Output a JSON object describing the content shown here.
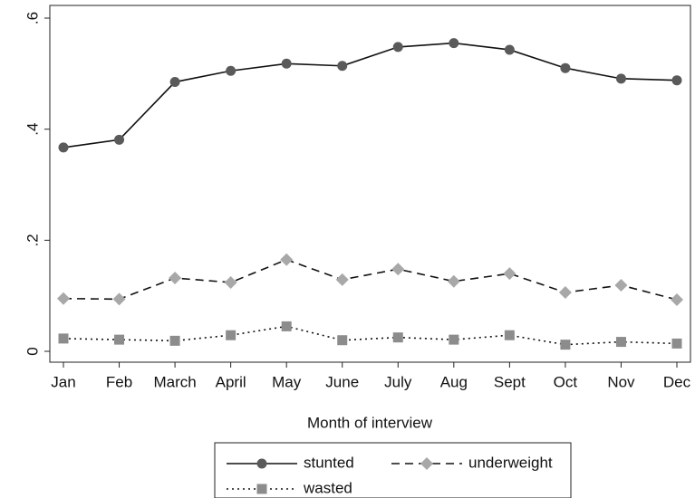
{
  "chart_data": {
    "type": "line",
    "x_label": "Month of interview",
    "categories": [
      "Jan",
      "Feb",
      "March",
      "April",
      "May",
      "June",
      "July",
      "Aug",
      "Sept",
      "Oct",
      "Nov",
      "Dec"
    ],
    "series": [
      {
        "name": "stunted",
        "color": "#5a5a5a",
        "marker": "circle",
        "line_style": "solid",
        "values": [
          0.367,
          0.381,
          0.485,
          0.505,
          0.518,
          0.514,
          0.548,
          0.555,
          0.543,
          0.51,
          0.491,
          0.488
        ]
      },
      {
        "name": "underweight",
        "color": "#a8a8a8",
        "marker": "diamond",
        "line_style": "dashed",
        "values": [
          0.095,
          0.094,
          0.132,
          0.124,
          0.165,
          0.129,
          0.148,
          0.126,
          0.14,
          0.106,
          0.119,
          0.093
        ]
      },
      {
        "name": "wasted",
        "color": "#8c8c8c",
        "marker": "square",
        "line_style": "dotted",
        "values": [
          0.023,
          0.021,
          0.019,
          0.029,
          0.045,
          0.02,
          0.025,
          0.021,
          0.029,
          0.012,
          0.017,
          0.014
        ]
      }
    ],
    "ylim": [
      0,
      0.6
    ],
    "yticks": [
      0,
      {
        "value": 0.2,
        "label": ".2"
      },
      {
        "value": 0.4,
        "label": ".4"
      },
      {
        "value": 0.6,
        "label": ".6"
      }
    ],
    "grid": false,
    "legend_position": "bottom"
  }
}
